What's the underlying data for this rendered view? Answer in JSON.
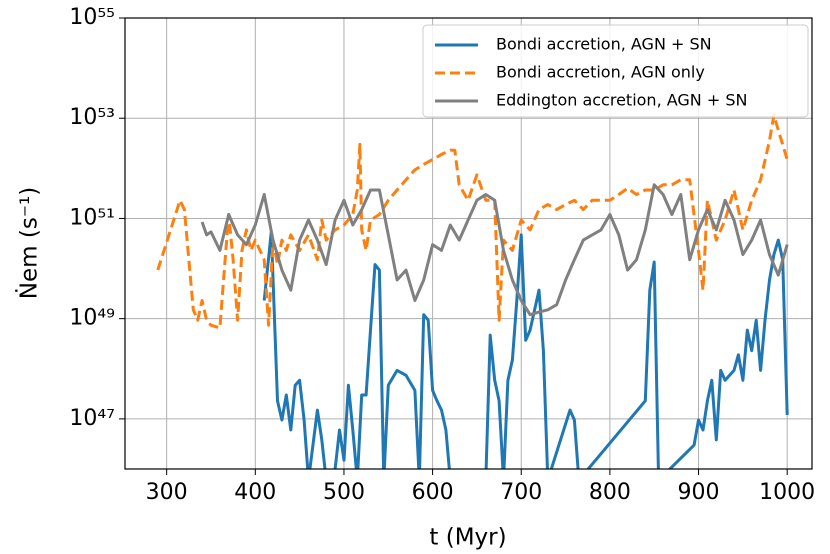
{
  "chart_data": {
    "type": "line",
    "xlabel": "t (Myr)",
    "ylabel": "Ṅem (s⁻¹)",
    "xlim": [
      253,
      1028
    ],
    "xticks": [
      300,
      400,
      500,
      600,
      700,
      800,
      900,
      1000
    ],
    "ylim": [
      1e+46,
      1e+55
    ],
    "log_y": true,
    "yticks": [
      {
        "value": 1e+47,
        "label": "10⁴⁷"
      },
      {
        "value": 1e+49,
        "label": "10⁴⁹"
      },
      {
        "value": 1e+51,
        "label": "10⁵¹"
      },
      {
        "value": 1e+53,
        "label": "10⁵³"
      },
      {
        "value": 1e+55,
        "label": "10⁵⁵"
      }
    ],
    "grid": true,
    "legend": "upper right",
    "series": [
      {
        "name": "Bondi accretion, AGN + SN",
        "color": "#1f77b4",
        "linestyle": "solid",
        "x": [
          410,
          418,
          425,
          430,
          435,
          440,
          445,
          450,
          455,
          460,
          470,
          475,
          480,
          490,
          495,
          500,
          505,
          510,
          515,
          520,
          525,
          530,
          535,
          540,
          545,
          550,
          560,
          570,
          580,
          585,
          590,
          595,
          600,
          605,
          610,
          615,
          620,
          640,
          660,
          665,
          670,
          675,
          680,
          685,
          690,
          695,
          700,
          705,
          710,
          720,
          725,
          730,
          755,
          760,
          765,
          840,
          845,
          850,
          855,
          895,
          900,
          905,
          910,
          915,
          920,
          925,
          930,
          940,
          945,
          950,
          955,
          960,
          965,
          970,
          975,
          980,
          985,
          990,
          995,
          1000
        ],
        "values": [
          2.3e+49,
          5.4e+50,
          2.3e+47,
          9.5e+46,
          3e+47,
          6e+46,
          4.7e+47,
          5.9e+47,
          9.5e+46,
          6e+45,
          1.5e+47,
          3.8e+46,
          6e+45,
          1e+46,
          6e+46,
          1.5e+46,
          4.7e+47,
          6e+46,
          6e+45,
          3e+47,
          3e+47,
          5.9e+48,
          1.2e+50,
          9.3e+49,
          6e+45,
          4.7e+47,
          9.3e+47,
          7.4e+47,
          3.7e+47,
          6e+45,
          1.2e+49,
          9.3e+48,
          3.7e+47,
          2.3e+47,
          1.5e+47,
          6e+46,
          6e+45,
          6e+45,
          6e+45,
          4.7e+48,
          5.9e+47,
          2.3e+47,
          6e+45,
          5.9e+47,
          1.5e+48,
          2.3e+49,
          4.7e+50,
          3.7e+48,
          5.9e+48,
          3.7e+49,
          2.3e+48,
          6e+45,
          1.5e+47,
          9.5e+46,
          6e+45,
          2.3e+47,
          3.7e+49,
          1.35e+50,
          6e+45,
          3e+46,
          9.5e+46,
          6e+46,
          2.3e+47,
          5.9e+47,
          3.8e+46,
          9.3e+47,
          5.9e+47,
          9.3e+47,
          1.9e+48,
          5.9e+47,
          5.9e+48,
          2.3e+48,
          9.3e+48,
          9.3e+47,
          9.3e+48,
          5.9e+49,
          1.9e+50,
          3.7e+50,
          1.5e+50,
          1.2e+47
        ]
      },
      {
        "name": "Bondi accretion, AGN only",
        "color": "#ff7f0e",
        "linestyle": "dashed",
        "x": [
          290,
          315,
          320,
          330,
          335,
          340,
          345,
          350,
          360,
          365,
          370,
          375,
          380,
          385,
          390,
          395,
          400,
          410,
          415,
          420,
          425,
          430,
          435,
          440,
          450,
          460,
          470,
          475,
          480,
          490,
          500,
          510,
          515,
          518,
          520,
          525,
          530,
          540,
          550,
          560,
          570,
          580,
          590,
          600,
          610,
          620,
          625,
          630,
          640,
          650,
          660,
          670,
          675,
          680,
          690,
          700,
          710,
          720,
          730,
          740,
          750,
          760,
          770,
          780,
          800,
          810,
          820,
          830,
          840,
          850,
          860,
          870,
          880,
          890,
          900,
          905,
          910,
          920,
          930,
          940,
          950,
          960,
          970,
          980,
          985,
          990,
          1000
        ],
        "values": [
          9.3e+49,
          2.3e+51,
          1.5e+51,
          1.5e+49,
          9.3e+48,
          2.3e+49,
          9.3e+48,
          7.4e+48,
          6.5e+48,
          9.3e+49,
          1.2e+51,
          1.5e+50,
          9.3e+48,
          2.3e+50,
          5.9e+50,
          2.3e+50,
          3.7e+50,
          1.5e+50,
          7.4e+48,
          3.7e+50,
          1.2e+50,
          3.7e+50,
          2.3e+50,
          4.7e+50,
          2.3e+50,
          4.7e+50,
          1.5e+50,
          9.3e+50,
          3.7e+50,
          5.9e+50,
          7.4e+50,
          1.2e+51,
          3.7e+51,
          3e+52,
          5.9e+50,
          2.3e+50,
          9.3e+50,
          1.2e+51,
          2.3e+51,
          3.7e+51,
          5.9e+51,
          9.3e+51,
          1.2e+52,
          1.5e+52,
          1.9e+52,
          2.3e+52,
          2.3e+52,
          4.7e+51,
          2.3e+51,
          7.4e+51,
          2.3e+51,
          2.3e+51,
          9.3e+48,
          3.7e+50,
          2.3e+50,
          9.3e+50,
          5.9e+50,
          1.5e+51,
          1.9e+51,
          1.5e+51,
          1.9e+51,
          2.3e+51,
          1.5e+51,
          2.3e+51,
          2.3e+51,
          3e+51,
          4e+51,
          3e+51,
          3.7e+51,
          3.7e+51,
          4.7e+51,
          4.7e+51,
          5.9e+51,
          5.9e+51,
          2.3e+50,
          3.7e+49,
          2.3e+51,
          3.7e+50,
          9.3e+50,
          3.7e+51,
          5.9e+50,
          2.3e+51,
          5.9e+51,
          3.6e+52,
          1.15e+53,
          5.8e+52,
          1.5e+52
        ]
      },
      {
        "name": "Eddington accretion, AGN + SN",
        "color": "#808080",
        "linestyle": "solid",
        "x": [
          340,
          345,
          350,
          360,
          370,
          380,
          390,
          400,
          410,
          420,
          430,
          440,
          450,
          460,
          470,
          480,
          490,
          500,
          510,
          520,
          530,
          540,
          550,
          560,
          570,
          580,
          590,
          600,
          610,
          620,
          630,
          640,
          650,
          660,
          670,
          680,
          690,
          700,
          710,
          720,
          730,
          740,
          750,
          760,
          770,
          780,
          790,
          800,
          810,
          820,
          830,
          840,
          850,
          860,
          870,
          880,
          890,
          900,
          910,
          920,
          930,
          940,
          950,
          960,
          970,
          980,
          990,
          1000
        ],
        "values": [
          8.5e+50,
          4.7e+50,
          5.4e+50,
          2.3e+50,
          1.2e+51,
          4.7e+50,
          3e+50,
          7.4e+50,
          3e+51,
          3.7e+50,
          9.3e+49,
          3.7e+49,
          3.7e+50,
          9.3e+50,
          3.7e+50,
          1.2e+50,
          9.3e+50,
          2.3e+51,
          7.4e+50,
          1.5e+51,
          3.7e+51,
          3.7e+51,
          4.7e+50,
          5.9e+49,
          9.3e+49,
          2.3e+49,
          5.9e+49,
          3e+50,
          2.3e+50,
          7.4e+50,
          3.7e+50,
          9.3e+50,
          2.3e+51,
          3e+51,
          2.3e+51,
          2.3e+50,
          5.9e+49,
          2.3e+49,
          1.2e+49,
          1.35e+49,
          1.5e+49,
          1.9e+49,
          5.9e+49,
          1.5e+50,
          3.7e+50,
          4.7e+50,
          5.9e+50,
          1.2e+51,
          4.7e+50,
          9.3e+49,
          1.5e+50,
          5.9e+50,
          4.7e+51,
          3e+51,
          1.2e+51,
          3e+51,
          1.5e+50,
          5.9e+50,
          1.5e+51,
          5.9e+50,
          2.3e+51,
          9.3e+50,
          1.9e+50,
          3.7e+50,
          9.3e+50,
          1.9e+50,
          7.4e+49,
          3e+50
        ]
      }
    ]
  }
}
